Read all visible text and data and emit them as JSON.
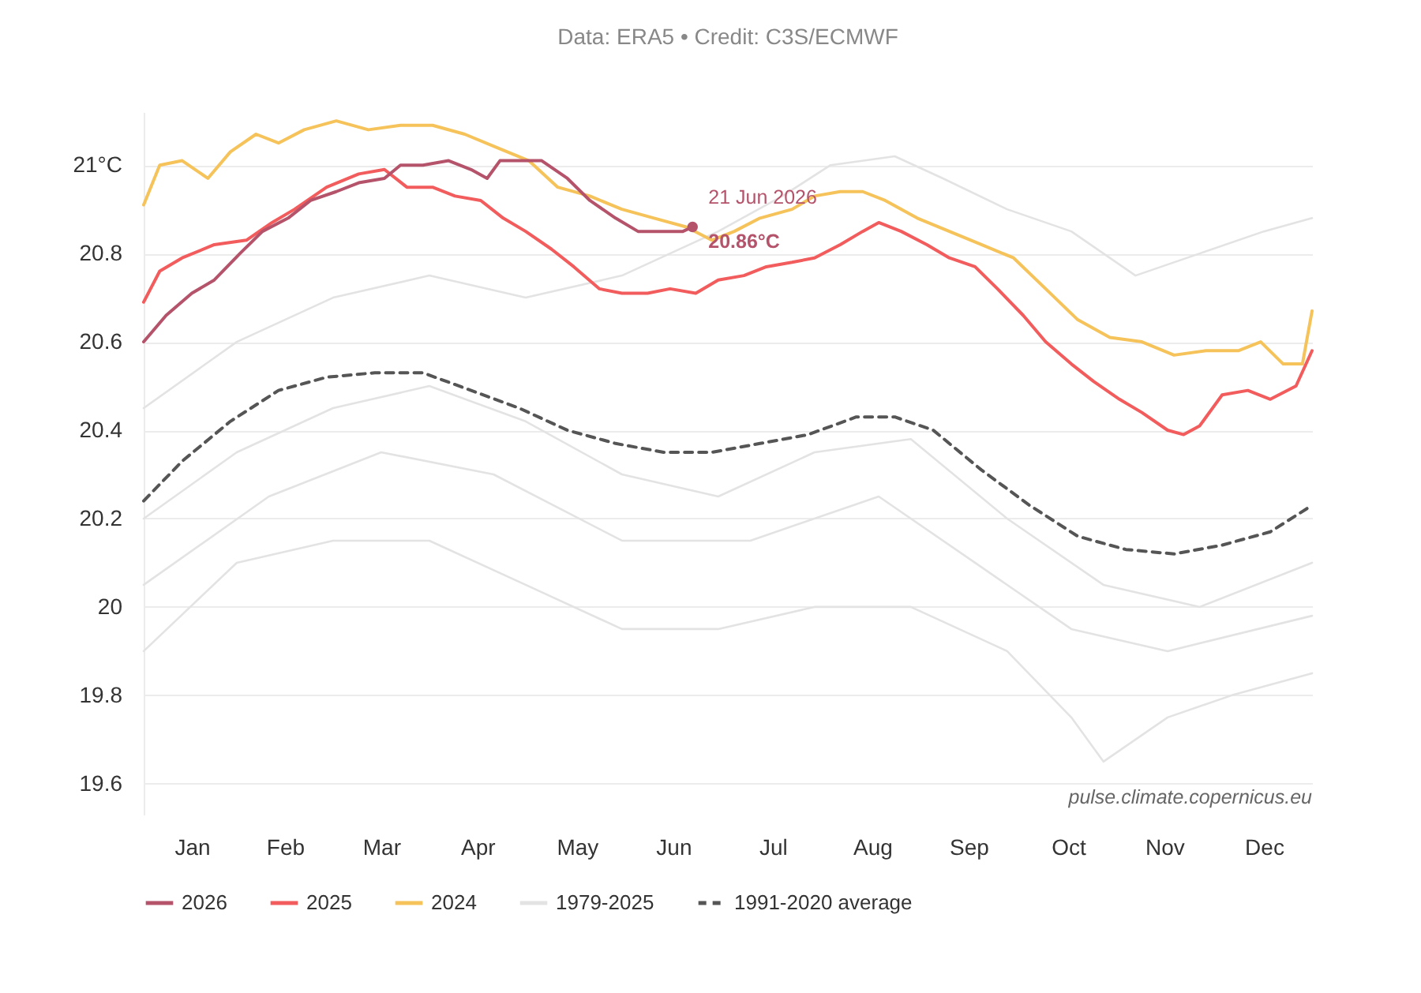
{
  "chart_data": {
    "type": "line",
    "title": "Data: ERA5 • Credit: C3S/ECMWF",
    "xlim": [
      "--01-01",
      "--12-31"
    ],
    "xticks": [
      {
        "value": "--01-16",
        "label": "Jan"
      },
      {
        "value": "--02-14",
        "label": "Feb"
      },
      {
        "value": "--03-16",
        "label": "Mar"
      },
      {
        "value": "--04-15",
        "label": "Apr"
      },
      {
        "value": "--05-16",
        "label": "May"
      },
      {
        "value": "--06-15",
        "label": "Jun"
      },
      {
        "value": "--07-16",
        "label": "Jul"
      },
      {
        "value": "--08-16",
        "label": "Aug"
      },
      {
        "value": "--09-15",
        "label": "Sep"
      },
      {
        "value": "--10-16",
        "label": "Oct"
      },
      {
        "value": "--11-15",
        "label": "Nov"
      },
      {
        "value": "--12-16",
        "label": "Dec"
      }
    ],
    "ylim": [
      19.53,
      21.12
    ],
    "yticks": [
      19.6,
      19.8,
      20,
      20.2,
      20.4,
      20.6,
      20.8,
      {
        "value": 21,
        "label": "21°C"
      }
    ],
    "grid": "y",
    "legend": "bottom",
    "marker": "none",
    "series": [
      {
        "name": "2026",
        "color": "#b5536b",
        "line_style": "solid",
        "x": [
          "--01-01",
          "--01-08",
          "--01-16",
          "--01-23",
          "--01-31",
          "--02-07",
          "--02-15",
          "--02-22",
          "--03-02",
          "--03-09",
          "--03-17",
          "--03-22",
          "--03-29",
          "--04-06",
          "--04-13",
          "--04-18",
          "--04-22",
          "--04-28",
          "--05-05",
          "--05-13",
          "--05-20",
          "--05-28",
          "--06-04",
          "--06-12",
          "--06-18",
          "--06-21"
        ],
        "values": [
          20.6,
          20.66,
          20.71,
          20.74,
          20.8,
          20.85,
          20.88,
          20.92,
          20.94,
          20.96,
          20.97,
          21.0,
          21.0,
          21.01,
          20.99,
          20.97,
          21.01,
          21.01,
          21.01,
          20.97,
          20.92,
          20.88,
          20.85,
          20.85,
          20.85,
          20.86
        ]
      },
      {
        "name": "2025",
        "color": "#f25c5c",
        "line_style": "solid",
        "x": [
          "--01-01",
          "--01-06",
          "--01-13",
          "--01-23",
          "--02-02",
          "--02-10",
          "--02-17",
          "--02-27",
          "--03-09",
          "--03-17",
          "--03-24",
          "--04-01",
          "--04-08",
          "--04-16",
          "--04-23",
          "--04-30",
          "--05-08",
          "--05-15",
          "--05-23",
          "--05-30",
          "--06-07",
          "--06-14",
          "--06-22",
          "--06-29",
          "--07-07",
          "--07-14",
          "--07-22",
          "--07-29",
          "--08-06",
          "--08-13",
          "--08-18",
          "--08-25",
          "--09-02",
          "--09-09",
          "--09-17",
          "--09-24",
          "--10-02",
          "--10-09",
          "--10-17",
          "--10-24",
          "--11-01",
          "--11-08",
          "--11-16",
          "--11-21",
          "--11-26",
          "--12-03",
          "--12-11",
          "--12-18",
          "--12-26",
          "--12-31"
        ],
        "values": [
          20.69,
          20.76,
          20.79,
          20.82,
          20.83,
          20.87,
          20.9,
          20.95,
          20.98,
          20.99,
          20.95,
          20.95,
          20.93,
          20.92,
          20.88,
          20.85,
          20.81,
          20.77,
          20.72,
          20.71,
          20.71,
          20.72,
          20.71,
          20.74,
          20.75,
          20.77,
          20.78,
          20.79,
          20.82,
          20.85,
          20.87,
          20.85,
          20.82,
          20.79,
          20.77,
          20.72,
          20.66,
          20.6,
          20.55,
          20.51,
          20.47,
          20.44,
          20.4,
          20.39,
          20.41,
          20.48,
          20.49,
          20.47,
          20.5,
          20.58
        ]
      },
      {
        "name": "2024",
        "color": "#f5c35a",
        "line_style": "solid",
        "x": [
          "--01-01",
          "--01-06",
          "--01-13",
          "--01-21",
          "--01-28",
          "--02-05",
          "--02-12",
          "--02-20",
          "--03-02",
          "--03-12",
          "--03-22",
          "--04-01",
          "--04-11",
          "--04-21",
          "--05-01",
          "--05-10",
          "--05-20",
          "--05-30",
          "--06-09",
          "--06-19",
          "--06-27",
          "--07-04",
          "--07-12",
          "--07-22",
          "--07-29",
          "--08-06",
          "--08-13",
          "--08-20",
          "--08-30",
          "--09-09",
          "--09-19",
          "--09-29",
          "--10-09",
          "--10-19",
          "--10-29",
          "--11-08",
          "--11-18",
          "--11-28",
          "--12-08",
          "--12-15",
          "--12-22",
          "--12-28",
          "--12-31"
        ],
        "values": [
          20.91,
          21.0,
          21.01,
          20.97,
          21.03,
          21.07,
          21.05,
          21.08,
          21.1,
          21.08,
          21.09,
          21.09,
          21.07,
          21.04,
          21.01,
          20.95,
          20.93,
          20.9,
          20.88,
          20.86,
          20.83,
          20.85,
          20.88,
          20.9,
          20.93,
          20.94,
          20.94,
          20.92,
          20.88,
          20.85,
          20.82,
          20.79,
          20.72,
          20.65,
          20.61,
          20.6,
          20.57,
          20.58,
          20.58,
          20.6,
          20.55,
          20.55,
          20.67
        ]
      },
      {
        "name": "1979-2025",
        "color": "#e3e3e3",
        "line_style": "solid",
        "x": [
          "--01-01",
          "--01-30",
          "--03-01",
          "--03-31",
          "--04-30",
          "--05-30",
          "--06-29",
          "--07-19",
          "--08-03",
          "--08-23",
          "--09-07",
          "--09-27",
          "--10-17",
          "--11-06",
          "--11-26",
          "--12-16",
          "--12-31"
        ],
        "values": [
          20.45,
          20.6,
          20.7,
          20.75,
          20.7,
          20.75,
          20.85,
          20.93,
          21.0,
          21.02,
          20.97,
          20.9,
          20.85,
          20.75,
          20.8,
          20.85,
          20.88
        ]
      },
      {
        "color": "#e3e3e3",
        "line_style": "solid",
        "x": [
          "--01-01",
          "--01-30",
          "--03-01",
          "--03-31",
          "--04-30",
          "--05-30",
          "--06-29",
          "--07-29",
          "--08-28",
          "--09-27",
          "--10-27",
          "--11-26",
          "--12-31"
        ],
        "values": [
          20.2,
          20.35,
          20.45,
          20.5,
          20.42,
          20.3,
          20.25,
          20.35,
          20.38,
          20.2,
          20.05,
          20.0,
          20.1
        ]
      },
      {
        "color": "#e3e3e3",
        "line_style": "solid",
        "x": [
          "--01-01",
          "--02-09",
          "--03-16",
          "--04-20",
          "--05-30",
          "--07-09",
          "--08-18",
          "--09-17",
          "--10-17",
          "--11-16",
          "--12-31"
        ],
        "values": [
          20.05,
          20.25,
          20.35,
          20.3,
          20.15,
          20.15,
          20.25,
          20.1,
          19.95,
          19.9,
          19.98
        ]
      },
      {
        "color": "#e3e3e3",
        "line_style": "solid",
        "x": [
          "--01-01",
          "--01-30",
          "--03-01",
          "--03-31",
          "--04-30",
          "--05-30",
          "--06-29",
          "--07-29",
          "--08-28",
          "--09-27",
          "--10-17",
          "--10-27",
          "--11-16",
          "--12-06",
          "--12-31"
        ],
        "values": [
          19.9,
          20.1,
          20.15,
          20.15,
          20.05,
          19.95,
          19.95,
          20.0,
          20.0,
          19.9,
          19.75,
          19.65,
          19.75,
          19.8,
          19.85
        ]
      },
      {
        "name": "1991-2020 average",
        "color": "#555555",
        "line_style": "dashed",
        "x": [
          "--01-01",
          "--01-13",
          "--01-28",
          "--02-12",
          "--02-27",
          "--03-14",
          "--03-29",
          "--04-13",
          "--04-28",
          "--05-13",
          "--05-28",
          "--06-12",
          "--06-27",
          "--07-12",
          "--07-27",
          "--08-11",
          "--08-23",
          "--09-04",
          "--09-19",
          "--10-04",
          "--10-19",
          "--11-03",
          "--11-18",
          "--12-03",
          "--12-18",
          "--12-31"
        ],
        "values": [
          20.24,
          20.33,
          20.42,
          20.49,
          20.52,
          20.53,
          20.53,
          20.49,
          20.45,
          20.4,
          20.37,
          20.35,
          20.35,
          20.37,
          20.39,
          20.43,
          20.43,
          20.4,
          20.31,
          20.23,
          20.16,
          20.13,
          20.12,
          20.14,
          20.17,
          20.23
        ]
      }
    ],
    "annotations": [
      {
        "text": "21 Jun 2026",
        "x": "--06-21",
        "y": 20.86
      },
      {
        "text": "20.86°C",
        "x": "--06-21",
        "y": 20.86
      },
      "pulse.climate.copernicus.eu"
    ]
  }
}
